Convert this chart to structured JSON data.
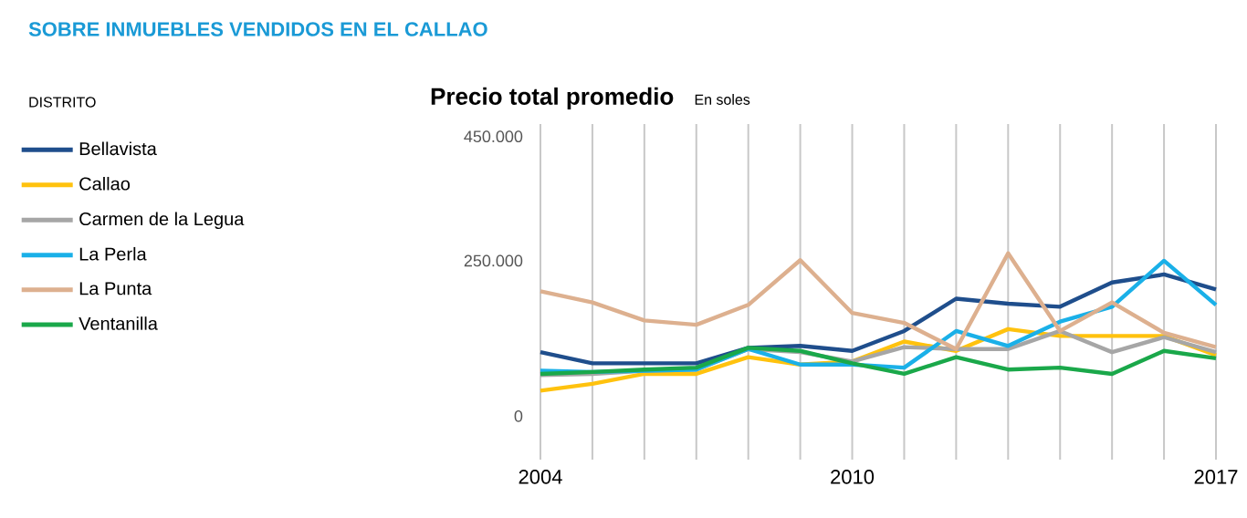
{
  "chart_data": {
    "type": "line",
    "title": "SOBRE INMUEBLES VENDIDOS EN EL CALLAO",
    "subtitle": "Precio total promedio",
    "annotations": [
      "En soles"
    ],
    "legend_title": "DISTRITO",
    "legend": "left",
    "x": [
      2004,
      2005,
      2006,
      2007,
      2008,
      2009,
      2010,
      2011,
      2012,
      2013,
      2014,
      2015,
      2016,
      2017
    ],
    "xlim": [
      2004,
      2017
    ],
    "xticks": [
      2004,
      {
        "value": 2005,
        "label": null
      },
      {
        "value": 2006,
        "label": null
      },
      {
        "value": 2007,
        "label": null
      },
      {
        "value": 2008,
        "label": null
      },
      {
        "value": 2009,
        "label": null
      },
      2010,
      {
        "value": 2011,
        "label": null
      },
      {
        "value": 2012,
        "label": null
      },
      {
        "value": 2013,
        "label": null
      },
      {
        "value": 2014,
        "label": null
      },
      {
        "value": 2015,
        "label": null
      },
      {
        "value": 2016,
        "label": null
      },
      2017
    ],
    "ylim": [
      -70000,
      470000
    ],
    "yticks": [
      0,
      {
        "value": 250000,
        "label": "250.000"
      },
      {
        "value": 450000,
        "label": "450.000"
      }
    ],
    "grid": "x",
    "series": [
      {
        "name": "Bellavista",
        "color": "#1f4e8c",
        "values": [
          103000,
          85000,
          85000,
          85000,
          110000,
          113000,
          105000,
          137000,
          189000,
          181000,
          176000,
          215000,
          228000,
          204000
        ]
      },
      {
        "name": "Callao",
        "color": "#ffc20e",
        "values": [
          41000,
          52000,
          68000,
          68000,
          95000,
          83000,
          88000,
          120000,
          105000,
          140000,
          129000,
          129000,
          129000,
          98000
        ]
      },
      {
        "name": "Carmen de la Legua",
        "color": "#a6a6a6",
        "values": [
          66000,
          68000,
          73000,
          75000,
          108000,
          103000,
          88000,
          111000,
          108000,
          108000,
          137000,
          103000,
          127000,
          103000
        ]
      },
      {
        "name": "La Perla",
        "color": "#1ab0e8",
        "values": [
          73000,
          71000,
          73000,
          75000,
          108000,
          83000,
          83000,
          78000,
          137000,
          113000,
          152000,
          176000,
          250000,
          179000
        ]
      },
      {
        "name": "La Punta",
        "color": "#ddb08f",
        "values": [
          201000,
          183000,
          154000,
          147000,
          179000,
          251000,
          166000,
          150000,
          108000,
          262000,
          137000,
          183000,
          134000,
          111000
        ]
      },
      {
        "name": "Ventanilla",
        "color": "#1aa84a",
        "values": [
          68000,
          71000,
          75000,
          78000,
          110000,
          105000,
          85000,
          68000,
          95000,
          75000,
          78000,
          68000,
          105000,
          93000
        ]
      }
    ]
  }
}
